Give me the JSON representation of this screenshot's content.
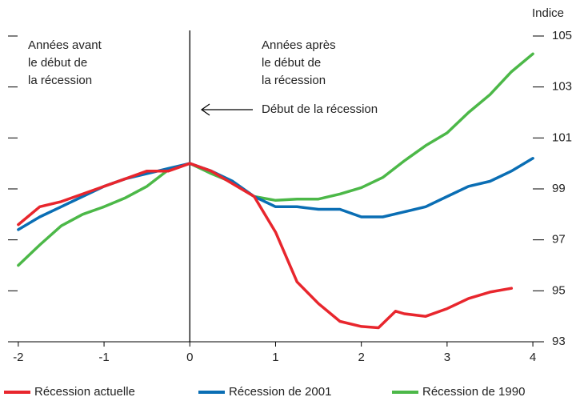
{
  "chart_data": {
    "type": "line",
    "y_axis_label": "Indice",
    "annotations": [
      {
        "lines": [
          "Années avant",
          "le début de",
          "la récession"
        ]
      },
      {
        "lines": [
          "Années après",
          "le début de",
          "la récession"
        ]
      },
      {
        "lines": [
          "Début de la récession"
        ]
      }
    ],
    "xlim": [
      -2.12,
      4.13
    ],
    "xticks": [
      -2,
      -1,
      0,
      1,
      2,
      3,
      4
    ],
    "ylim": [
      93,
      105
    ],
    "yticks": [
      93,
      95,
      97,
      99,
      101,
      103,
      105
    ],
    "legend": "bottom",
    "series": [
      {
        "name": "Récession actuelle",
        "color": "#e8262d",
        "x": [
          -2,
          -1.75,
          -1.5,
          -1.25,
          -1,
          -0.75,
          -0.5,
          -0.25,
          0,
          0.25,
          0.5,
          0.75,
          1,
          1.25,
          1.5,
          1.75,
          2,
          2.2,
          2.4,
          2.5,
          2.75,
          3,
          3.25,
          3.5,
          3.75
        ],
        "values": [
          97.6,
          98.3,
          98.5,
          98.8,
          99.1,
          99.4,
          99.7,
          99.7,
          100,
          99.7,
          99.2,
          98.7,
          97.3,
          95.35,
          94.5,
          93.8,
          93.6,
          93.55,
          94.2,
          94.1,
          94.0,
          94.3,
          94.7,
          94.95,
          95.1
        ]
      },
      {
        "name": "Récession de 2001",
        "color": "#0a6eb4",
        "x": [
          -2,
          -1.75,
          -1.5,
          -1.25,
          -1,
          -0.75,
          -0.5,
          -0.25,
          0,
          0.25,
          0.5,
          0.75,
          1,
          1.25,
          1.5,
          1.75,
          2,
          2.25,
          2.5,
          2.75,
          3,
          3.25,
          3.5,
          3.75,
          4
        ],
        "values": [
          97.4,
          97.9,
          98.3,
          98.7,
          99.1,
          99.4,
          99.6,
          99.8,
          100,
          99.7,
          99.3,
          98.7,
          98.3,
          98.3,
          98.2,
          98.2,
          97.9,
          97.9,
          98.1,
          98.3,
          98.7,
          99.1,
          99.3,
          99.7,
          100.2
        ]
      },
      {
        "name": "Récession de 1990",
        "color": "#4cb848",
        "x": [
          -2,
          -1.75,
          -1.5,
          -1.25,
          -1,
          -0.75,
          -0.5,
          -0.25,
          0,
          0.25,
          0.5,
          0.75,
          1,
          1.25,
          1.5,
          1.75,
          2,
          2.25,
          2.5,
          2.75,
          3,
          3.25,
          3.5,
          3.75,
          4
        ],
        "values": [
          96.0,
          96.8,
          97.55,
          98.0,
          98.3,
          98.65,
          99.1,
          99.75,
          100,
          99.6,
          99.25,
          98.7,
          98.55,
          98.6,
          98.6,
          98.8,
          99.05,
          99.45,
          100.1,
          100.7,
          101.2,
          102.0,
          102.7,
          103.6,
          104.3
        ]
      }
    ]
  }
}
